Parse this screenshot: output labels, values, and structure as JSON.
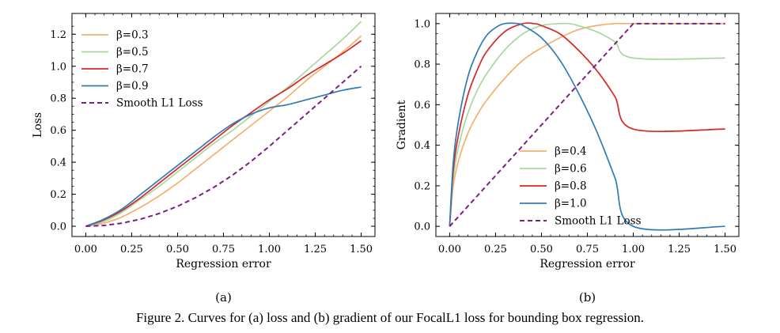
{
  "caption": "Figure 2. Curves for (a) loss and (b) gradient of our FocalL1 loss for bounding box regression.",
  "chart_data": [
    {
      "type": "line",
      "panel_label": "(a)",
      "xlabel": "Regression error",
      "ylabel": "Loss",
      "xlim": [
        -0.075,
        1.575
      ],
      "ylim": [
        -0.064,
        1.33
      ],
      "xticks": [
        "0.00",
        "0.25",
        "0.50",
        "0.75",
        "1.00",
        "1.25",
        "1.50"
      ],
      "yticks": [
        "0.0",
        "0.2",
        "0.4",
        "0.6",
        "0.8",
        "1.0",
        "1.2"
      ],
      "legend_position": "top-left",
      "series": [
        {
          "name": "β=0.3",
          "color": "#f4b06b",
          "dashed": false,
          "x": [
            0,
            0.1,
            0.2,
            0.3,
            0.4,
            0.5,
            0.6,
            0.7,
            0.8,
            0.9,
            1.0,
            1.1,
            1.2,
            1.3,
            1.4,
            1.5
          ],
          "y": [
            0,
            0.02,
            0.06,
            0.12,
            0.19,
            0.27,
            0.36,
            0.45,
            0.54,
            0.63,
            0.72,
            0.81,
            0.91,
            1.0,
            1.09,
            1.19
          ]
        },
        {
          "name": "β=0.5",
          "color": "#a8d8a0",
          "dashed": false,
          "x": [
            0,
            0.1,
            0.2,
            0.3,
            0.4,
            0.5,
            0.6,
            0.7,
            0.8,
            0.9,
            1.0,
            1.1,
            1.2,
            1.3,
            1.4,
            1.5
          ],
          "y": [
            0,
            0.03,
            0.09,
            0.17,
            0.25,
            0.34,
            0.43,
            0.52,
            0.6,
            0.69,
            0.78,
            0.87,
            0.97,
            1.07,
            1.17,
            1.28
          ]
        },
        {
          "name": "β=0.7",
          "color": "#d62728",
          "dashed": false,
          "x": [
            0,
            0.1,
            0.2,
            0.3,
            0.4,
            0.5,
            0.6,
            0.7,
            0.8,
            0.9,
            1.0,
            1.1,
            1.2,
            1.3,
            1.4,
            1.5
          ],
          "y": [
            0,
            0.04,
            0.1,
            0.18,
            0.27,
            0.36,
            0.45,
            0.54,
            0.63,
            0.71,
            0.79,
            0.86,
            0.94,
            1.01,
            1.08,
            1.16
          ]
        },
        {
          "name": "β=0.9",
          "color": "#2f7bb6",
          "dashed": false,
          "x": [
            0,
            0.1,
            0.2,
            0.3,
            0.4,
            0.5,
            0.6,
            0.7,
            0.8,
            0.9,
            1.0,
            1.1,
            1.2,
            1.3,
            1.4,
            1.5
          ],
          "y": [
            0,
            0.045,
            0.11,
            0.2,
            0.29,
            0.38,
            0.47,
            0.56,
            0.64,
            0.7,
            0.74,
            0.76,
            0.79,
            0.82,
            0.85,
            0.87
          ]
        },
        {
          "name": "Smooth L1 Loss",
          "color": "#7b1f82",
          "dashed": true,
          "x": [
            0,
            0.1,
            0.2,
            0.3,
            0.4,
            0.5,
            0.6,
            0.7,
            0.8,
            0.9,
            1.0,
            1.1,
            1.2,
            1.3,
            1.4,
            1.5
          ],
          "y": [
            0,
            0.005,
            0.02,
            0.045,
            0.08,
            0.125,
            0.18,
            0.245,
            0.32,
            0.405,
            0.5,
            0.6,
            0.7,
            0.8,
            0.9,
            1.0
          ]
        }
      ]
    },
    {
      "type": "line",
      "panel_label": "(b)",
      "xlabel": "Regression error",
      "ylabel": "Gradient",
      "xlim": [
        -0.075,
        1.575
      ],
      "ylim": [
        -0.05,
        1.05
      ],
      "xticks": [
        "0.00",
        "0.25",
        "0.50",
        "0.75",
        "1.00",
        "1.25",
        "1.50"
      ],
      "yticks": [
        "0.0",
        "0.2",
        "0.4",
        "0.6",
        "0.8",
        "1.0"
      ],
      "legend_position": "bottom-center",
      "series": [
        {
          "name": "β=0.4",
          "color": "#f4b06b",
          "dashed": false,
          "x": [
            0,
            0.02,
            0.05,
            0.1,
            0.15,
            0.2,
            0.3,
            0.4,
            0.5,
            0.6,
            0.7,
            0.8,
            0.9,
            0.95,
            1.0,
            1.5
          ],
          "y": [
            0,
            0.2,
            0.33,
            0.46,
            0.55,
            0.62,
            0.73,
            0.82,
            0.88,
            0.93,
            0.97,
            0.99,
            1.0,
            1.0,
            1.0,
            1.0
          ]
        },
        {
          "name": "β=0.6",
          "color": "#a8d8a0",
          "dashed": false,
          "x": [
            0,
            0.02,
            0.05,
            0.1,
            0.15,
            0.2,
            0.3,
            0.4,
            0.5,
            0.6,
            0.65,
            0.7,
            0.8,
            0.9,
            1.0,
            1.5
          ],
          "y": [
            0,
            0.24,
            0.4,
            0.56,
            0.67,
            0.75,
            0.87,
            0.95,
            0.99,
            1.0,
            1.0,
            0.99,
            0.96,
            0.91,
            0.83,
            0.83
          ]
        },
        {
          "name": "β=0.8",
          "color": "#d62728",
          "dashed": false,
          "x": [
            0,
            0.02,
            0.05,
            0.1,
            0.15,
            0.2,
            0.3,
            0.4,
            0.46,
            0.5,
            0.6,
            0.7,
            0.8,
            0.9,
            1.0,
            1.5
          ],
          "y": [
            0,
            0.28,
            0.46,
            0.65,
            0.77,
            0.86,
            0.96,
            1.0,
            1.0,
            0.99,
            0.95,
            0.87,
            0.77,
            0.64,
            0.48,
            0.48
          ]
        },
        {
          "name": "β=1.0",
          "color": "#2f7bb6",
          "dashed": false,
          "x": [
            0,
            0.02,
            0.05,
            0.1,
            0.15,
            0.2,
            0.25,
            0.3,
            0.37,
            0.4,
            0.5,
            0.6,
            0.7,
            0.8,
            0.9,
            1.0,
            1.5
          ],
          "y": [
            0,
            0.32,
            0.53,
            0.74,
            0.86,
            0.94,
            0.98,
            1.0,
            1.0,
            0.99,
            0.93,
            0.82,
            0.66,
            0.47,
            0.24,
            0.0,
            0.0
          ]
        },
        {
          "name": "Smooth L1 Loss",
          "color": "#7b1f82",
          "dashed": true,
          "x": [
            0,
            1.0,
            1.5
          ],
          "y": [
            0,
            1.0,
            1.0
          ]
        }
      ]
    }
  ]
}
